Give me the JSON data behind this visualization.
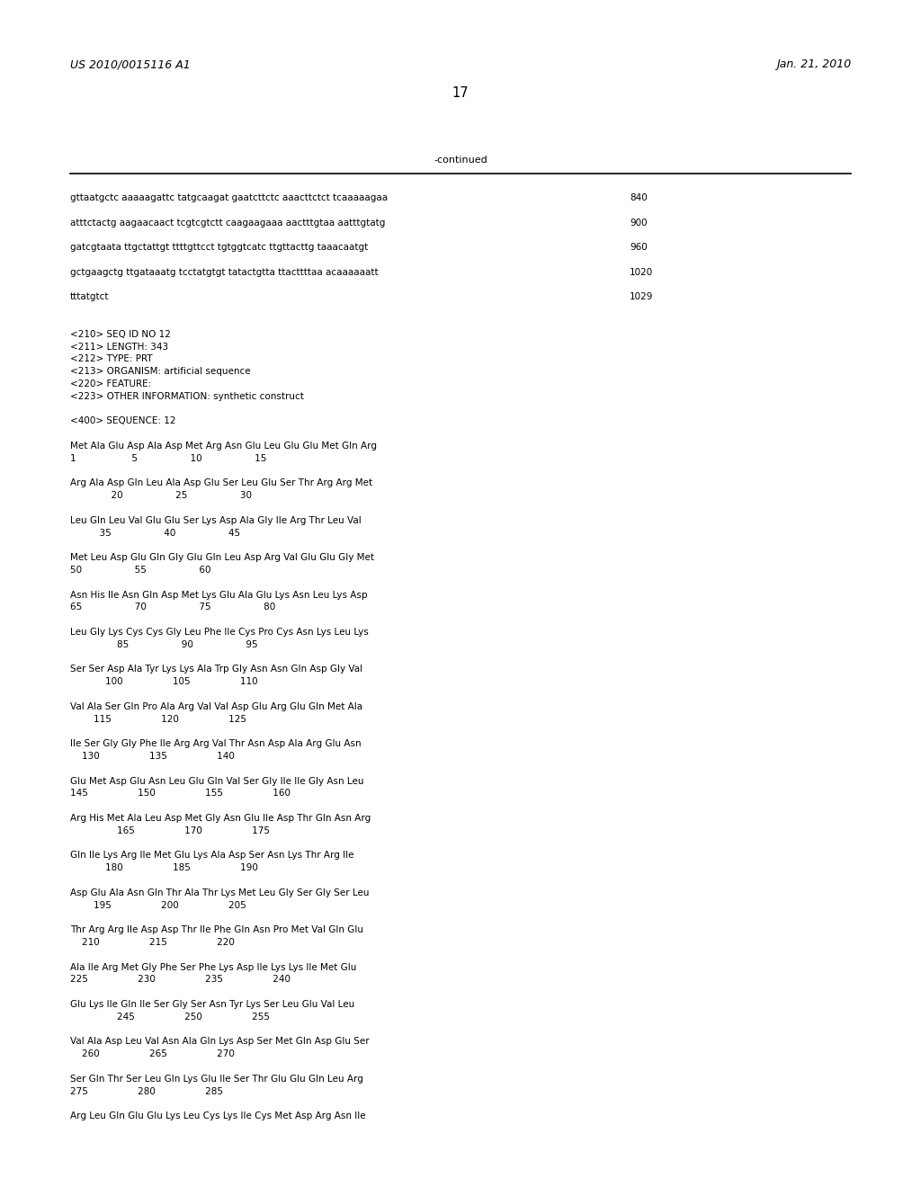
{
  "background_color": "#ffffff",
  "header_left": "US 2010/0015116 A1",
  "header_right": "Jan. 21, 2010",
  "page_number": "17",
  "continued_label": "-continued",
  "body_lines": [
    {
      "text": "gttaatgctc aaaaagattc tatgcaagat gaatcttctc aaacttctct tcaaaaagaa",
      "num": "840"
    },
    {
      "text": "",
      "num": ""
    },
    {
      "text": "atttctactg aagaacaact tcgtcgtctt caagaagaaa aactttgtaa aatttgtatg",
      "num": "900"
    },
    {
      "text": "",
      "num": ""
    },
    {
      "text": "gatcgtaata ttgctattgt ttttgttcct tgtggtcatc ttgttacttg taaacaatgt",
      "num": "960"
    },
    {
      "text": "",
      "num": ""
    },
    {
      "text": "gctgaagctg ttgataaatg tcctatgtgt tatactgtta ttacttttaa acaaaaaatt",
      "num": "1020"
    },
    {
      "text": "",
      "num": ""
    },
    {
      "text": "tttatgtct",
      "num": "1029"
    },
    {
      "text": "",
      "num": ""
    },
    {
      "text": "",
      "num": ""
    },
    {
      "text": "<210> SEQ ID NO 12",
      "num": ""
    },
    {
      "text": "<211> LENGTH: 343",
      "num": ""
    },
    {
      "text": "<212> TYPE: PRT",
      "num": ""
    },
    {
      "text": "<213> ORGANISM: artificial sequence",
      "num": ""
    },
    {
      "text": "<220> FEATURE:",
      "num": ""
    },
    {
      "text": "<223> OTHER INFORMATION: synthetic construct",
      "num": ""
    },
    {
      "text": "",
      "num": ""
    },
    {
      "text": "<400> SEQUENCE: 12",
      "num": ""
    },
    {
      "text": "",
      "num": ""
    },
    {
      "text": "Met Ala Glu Asp Ala Asp Met Arg Asn Glu Leu Glu Glu Met Gln Arg",
      "num": ""
    },
    {
      "text": "1                   5                  10                  15",
      "num": ""
    },
    {
      "text": "",
      "num": ""
    },
    {
      "text": "Arg Ala Asp Gln Leu Ala Asp Glu Ser Leu Glu Ser Thr Arg Arg Met",
      "num": ""
    },
    {
      "text": "              20                  25                  30",
      "num": ""
    },
    {
      "text": "",
      "num": ""
    },
    {
      "text": "Leu Gln Leu Val Glu Glu Ser Lys Asp Ala Gly Ile Arg Thr Leu Val",
      "num": ""
    },
    {
      "text": "          35                  40                  45",
      "num": ""
    },
    {
      "text": "",
      "num": ""
    },
    {
      "text": "Met Leu Asp Glu Gln Gly Glu Gln Leu Asp Arg Val Glu Glu Gly Met",
      "num": ""
    },
    {
      "text": "50                  55                  60",
      "num": ""
    },
    {
      "text": "",
      "num": ""
    },
    {
      "text": "Asn His Ile Asn Gln Asp Met Lys Glu Ala Glu Lys Asn Leu Lys Asp",
      "num": ""
    },
    {
      "text": "65                  70                  75                  80",
      "num": ""
    },
    {
      "text": "",
      "num": ""
    },
    {
      "text": "Leu Gly Lys Cys Cys Gly Leu Phe Ile Cys Pro Cys Asn Lys Leu Lys",
      "num": ""
    },
    {
      "text": "                85                  90                  95",
      "num": ""
    },
    {
      "text": "",
      "num": ""
    },
    {
      "text": "Ser Ser Asp Ala Tyr Lys Lys Ala Trp Gly Asn Asn Gln Asp Gly Val",
      "num": ""
    },
    {
      "text": "            100                 105                 110",
      "num": ""
    },
    {
      "text": "",
      "num": ""
    },
    {
      "text": "Val Ala Ser Gln Pro Ala Arg Val Val Asp Glu Arg Glu Gln Met Ala",
      "num": ""
    },
    {
      "text": "        115                 120                 125",
      "num": ""
    },
    {
      "text": "",
      "num": ""
    },
    {
      "text": "Ile Ser Gly Gly Phe Ile Arg Arg Val Thr Asn Asp Ala Arg Glu Asn",
      "num": ""
    },
    {
      "text": "    130                 135                 140",
      "num": ""
    },
    {
      "text": "",
      "num": ""
    },
    {
      "text": "Glu Met Asp Glu Asn Leu Glu Gln Val Ser Gly Ile Ile Gly Asn Leu",
      "num": ""
    },
    {
      "text": "145                 150                 155                 160",
      "num": ""
    },
    {
      "text": "",
      "num": ""
    },
    {
      "text": "Arg His Met Ala Leu Asp Met Gly Asn Glu Ile Asp Thr Gln Asn Arg",
      "num": ""
    },
    {
      "text": "                165                 170                 175",
      "num": ""
    },
    {
      "text": "",
      "num": ""
    },
    {
      "text": "Gln Ile Lys Arg Ile Met Glu Lys Ala Asp Ser Asn Lys Thr Arg Ile",
      "num": ""
    },
    {
      "text": "            180                 185                 190",
      "num": ""
    },
    {
      "text": "",
      "num": ""
    },
    {
      "text": "Asp Glu Ala Asn Gln Thr Ala Thr Lys Met Leu Gly Ser Gly Ser Leu",
      "num": ""
    },
    {
      "text": "        195                 200                 205",
      "num": ""
    },
    {
      "text": "",
      "num": ""
    },
    {
      "text": "Thr Arg Arg Ile Asp Asp Thr Ile Phe Gln Asn Pro Met Val Gln Glu",
      "num": ""
    },
    {
      "text": "    210                 215                 220",
      "num": ""
    },
    {
      "text": "",
      "num": ""
    },
    {
      "text": "Ala Ile Arg Met Gly Phe Ser Phe Lys Asp Ile Lys Lys Ile Met Glu",
      "num": ""
    },
    {
      "text": "225                 230                 235                 240",
      "num": ""
    },
    {
      "text": "",
      "num": ""
    },
    {
      "text": "Glu Lys Ile Gln Ile Ser Gly Ser Asn Tyr Lys Ser Leu Glu Val Leu",
      "num": ""
    },
    {
      "text": "                245                 250                 255",
      "num": ""
    },
    {
      "text": "",
      "num": ""
    },
    {
      "text": "Val Ala Asp Leu Val Asn Ala Gln Lys Asp Ser Met Gln Asp Glu Ser",
      "num": ""
    },
    {
      "text": "    260                 265                 270",
      "num": ""
    },
    {
      "text": "",
      "num": ""
    },
    {
      "text": "Ser Gln Thr Ser Leu Gln Lys Glu Ile Ser Thr Glu Glu Gln Leu Arg",
      "num": ""
    },
    {
      "text": "275                 280                 285",
      "num": ""
    },
    {
      "text": "",
      "num": ""
    },
    {
      "text": "Arg Leu Gln Glu Glu Lys Leu Cys Lys Ile Cys Met Asp Arg Asn Ile",
      "num": ""
    }
  ],
  "font_size_body": 7.5,
  "font_size_header": 9.0,
  "font_size_page_num": 10.5
}
